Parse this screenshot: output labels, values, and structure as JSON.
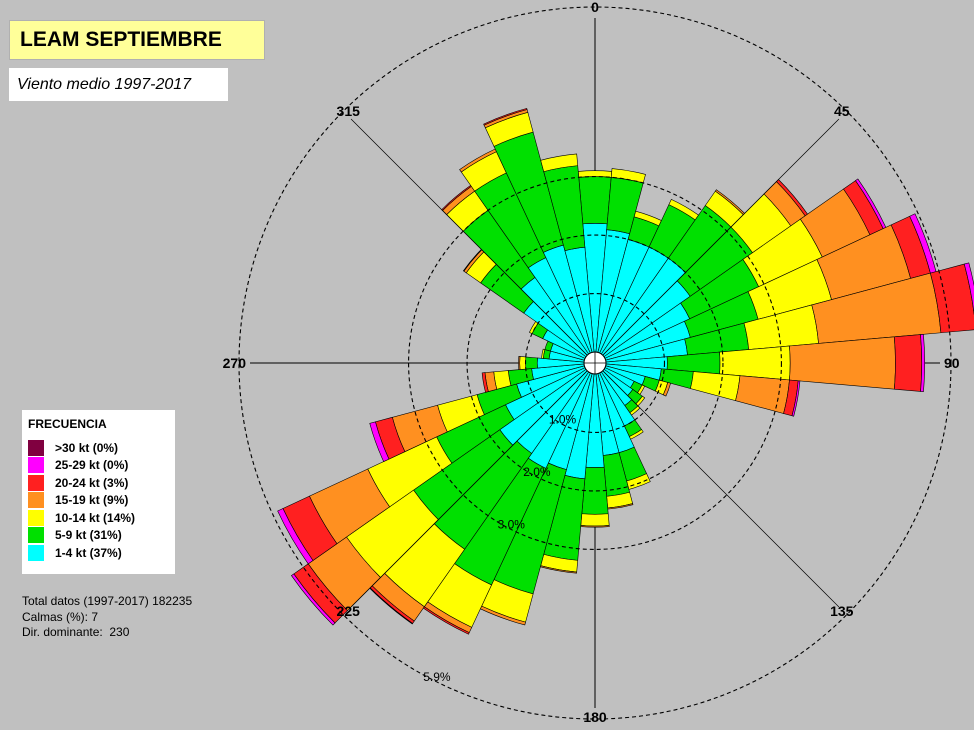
{
  "header": {
    "title": "LEAM SEPTIEMBRE",
    "subtitle": "Viento medio 1997-2017"
  },
  "legend": {
    "title": "FRECUENCIA",
    "items": [
      {
        "label": ">30 kt (0%)",
        "color": "#800040"
      },
      {
        "label": "25-29 kt (0%)",
        "color": "#ff00ff"
      },
      {
        "label": "20-24 kt (3%)",
        "color": "#ff2020"
      },
      {
        "label": "15-19 kt (9%)",
        "color": "#ff9020"
      },
      {
        "label": "10-14 kt (14%)",
        "color": "#ffff00"
      },
      {
        "label": "5-9 kt (31%)",
        "color": "#00e000"
      },
      {
        "label": "1-4 kt (37%)",
        "color": "#00ffff"
      }
    ]
  },
  "stats": {
    "total": "Total datos (1997-2017) 182235",
    "calms": "Calmas (%): 7",
    "dominant": "Dir. dominante:  230"
  },
  "chart_data": {
    "type": "wind_rose",
    "title": "LEAM SEPTIEMBRE",
    "subtitle": "Viento medio 1997-2017",
    "direction_labels": [
      "0",
      "45",
      "90",
      "135",
      "180",
      "225",
      "270",
      "315"
    ],
    "ring_labels": [
      "1.0%",
      "2.0%",
      "3.0%",
      "5.9%"
    ],
    "rings": [
      1.0,
      2.0,
      3.0,
      5.9
    ],
    "calms_percent": 7,
    "total_records": 182235,
    "dominant_direction": 230,
    "sector_width_deg": 10,
    "series_order": [
      "1-4 kt",
      "5-9 kt",
      "10-14 kt",
      "15-19 kt",
      "20-24 kt",
      "25-29 kt",
      ">30 kt"
    ],
    "colors": [
      "#00ffff",
      "#00e000",
      "#ffff00",
      "#ff9020",
      "#ff2020",
      "#ff00ff",
      "#800040"
    ],
    "sectors": [
      {
        "dir": 0,
        "values": [
          2.2,
          0.8,
          0.1,
          0.0,
          0.0,
          0.0,
          0.0
        ]
      },
      {
        "dir": 10,
        "values": [
          2.1,
          0.9,
          0.15,
          0.0,
          0.0,
          0.0,
          0.0
        ]
      },
      {
        "dir": 20,
        "values": [
          2.0,
          0.4,
          0.1,
          0.0,
          0.0,
          0.0,
          0.0
        ]
      },
      {
        "dir": 30,
        "values": [
          2.0,
          0.8,
          0.1,
          0.0,
          0.0,
          0.0,
          0.0
        ]
      },
      {
        "dir": 40,
        "values": [
          2.0,
          1.1,
          0.3,
          0.03,
          0.0,
          0.0,
          0.0
        ]
      },
      {
        "dir": 50,
        "values": [
          1.8,
          1.3,
          0.8,
          0.3,
          0.05,
          0.0,
          0.0
        ]
      },
      {
        "dir": 60,
        "values": [
          1.6,
          1.3,
          1.2,
          0.9,
          0.25,
          0.05,
          0.0
        ]
      },
      {
        "dir": 70,
        "values": [
          1.5,
          1.2,
          1.3,
          1.4,
          0.35,
          0.1,
          0.0
        ]
      },
      {
        "dir": 80,
        "values": [
          1.4,
          1.05,
          1.2,
          2.1,
          0.6,
          0.08,
          0.0
        ]
      },
      {
        "dir": 90,
        "values": [
          1.05,
          0.9,
          1.2,
          1.8,
          0.45,
          0.05,
          0.0
        ]
      },
      {
        "dir": 100,
        "values": [
          0.95,
          0.55,
          0.8,
          0.85,
          0.15,
          0.03,
          0.0
        ]
      },
      {
        "dir": 110,
        "values": [
          0.7,
          0.25,
          0.15,
          0.05,
          0.0,
          0.0,
          0.0
        ]
      },
      {
        "dir": 120,
        "values": [
          0.55,
          0.15,
          0.05,
          0.0,
          0.0,
          0.0,
          0.0
        ]
      },
      {
        "dir": 130,
        "values": [
          0.6,
          0.2,
          0.05,
          0.0,
          0.0,
          0.0,
          0.0
        ]
      },
      {
        "dir": 140,
        "values": [
          0.7,
          0.15,
          0.05,
          0.0,
          0.0,
          0.0,
          0.0
        ]
      },
      {
        "dir": 150,
        "values": [
          1.0,
          0.2,
          0.05,
          0.0,
          0.0,
          0.0,
          0.0
        ]
      },
      {
        "dir": 160,
        "values": [
          1.4,
          0.5,
          0.15,
          0.0,
          0.0,
          0.0,
          0.0
        ]
      },
      {
        "dir": 170,
        "values": [
          1.4,
          0.7,
          0.2,
          0.02,
          0.0,
          0.0,
          0.0
        ]
      },
      {
        "dir": 180,
        "values": [
          1.6,
          0.8,
          0.2,
          0.02,
          0.0,
          0.0,
          0.0
        ]
      },
      {
        "dir": 190,
        "values": [
          1.8,
          1.4,
          0.2,
          0.02,
          0.0,
          0.0,
          0.0
        ]
      },
      {
        "dir": 200,
        "values": [
          1.7,
          2.2,
          0.5,
          0.05,
          0.0,
          0.0,
          0.0
        ]
      },
      {
        "dir": 210,
        "values": [
          1.8,
          2.2,
          0.8,
          0.1,
          0.03,
          0.0,
          0.0
        ]
      },
      {
        "dir": 220,
        "values": [
          1.7,
          2.0,
          1.2,
          0.3,
          0.05,
          0.01,
          0.0
        ]
      },
      {
        "dir": 230,
        "values": [
          1.8,
          1.8,
          1.4,
          0.8,
          0.3,
          0.05,
          0.0
        ]
      },
      {
        "dir": 240,
        "values": [
          1.5,
          1.3,
          1.3,
          1.1,
          0.5,
          0.1,
          0.0
        ]
      },
      {
        "dir": 250,
        "values": [
          1.2,
          0.7,
          0.7,
          0.8,
          0.3,
          0.1,
          0.0
        ]
      },
      {
        "dir": 260,
        "values": [
          0.9,
          0.4,
          0.25,
          0.15,
          0.05,
          0.0,
          0.0
        ]
      },
      {
        "dir": 270,
        "values": [
          0.8,
          0.2,
          0.1,
          0.02,
          0.0,
          0.0,
          0.0
        ]
      },
      {
        "dir": 280,
        "values": [
          0.6,
          0.1,
          0.03,
          0.0,
          0.0,
          0.0,
          0.0
        ]
      },
      {
        "dir": 290,
        "values": [
          0.6,
          0.1,
          0.0,
          0.0,
          0.0,
          0.0,
          0.0
        ]
      },
      {
        "dir": 300,
        "values": [
          0.8,
          0.2,
          0.05,
          0.0,
          0.0,
          0.0,
          0.0
        ]
      },
      {
        "dir": 310,
        "values": [
          1.3,
          0.9,
          0.3,
          0.05,
          0.01,
          0.0,
          0.0
        ]
      },
      {
        "dir": 320,
        "values": [
          1.6,
          1.4,
          0.4,
          0.1,
          0.02,
          0.0,
          0.0
        ]
      },
      {
        "dir": 330,
        "values": [
          1.8,
          1.6,
          0.4,
          0.05,
          0.0,
          0.0,
          0.0
        ]
      },
      {
        "dir": 340,
        "values": [
          1.9,
          2.0,
          0.35,
          0.05,
          0.02,
          0.0,
          0.0
        ]
      },
      {
        "dir": 350,
        "values": [
          1.8,
          1.4,
          0.2,
          0.0,
          0.0,
          0.0,
          0.0
        ]
      }
    ]
  }
}
